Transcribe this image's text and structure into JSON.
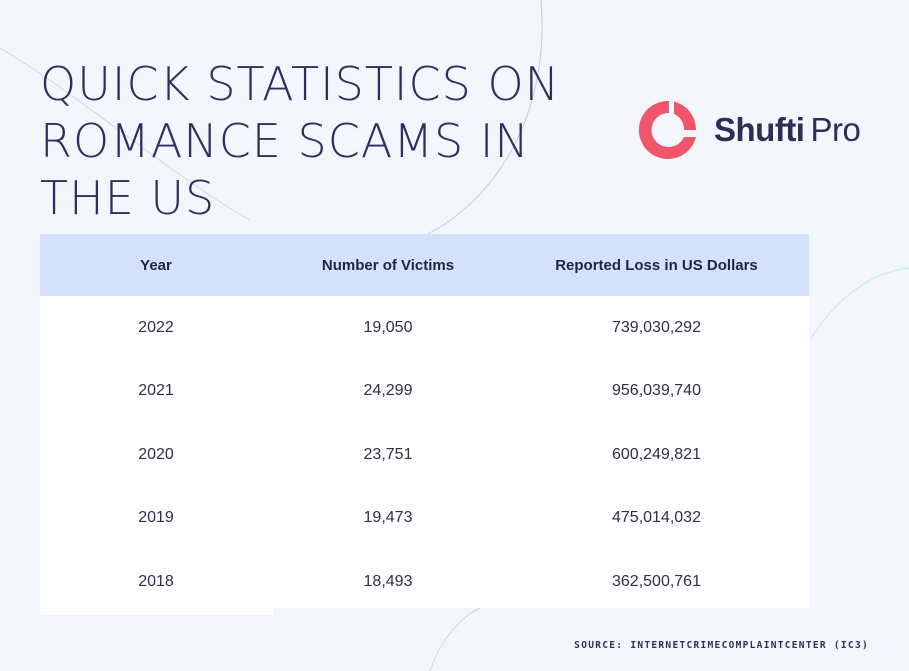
{
  "title": "QUICK STATISTICS ON ROMANCE SCAMS IN THE US",
  "logo": {
    "name_bold": "Shufti",
    "name_light": "Pro",
    "accent_color": "#f0566a"
  },
  "table": {
    "headers": [
      "Year",
      "Number of Victims",
      "Reported Loss in US Dollars"
    ],
    "rows": [
      [
        "2022",
        "19,050",
        "739,030,292"
      ],
      [
        "2021",
        "24,299",
        "956,039,740"
      ],
      [
        "2020",
        "23,751",
        "600,249,821"
      ],
      [
        "2019",
        "19,473",
        "475,014,032"
      ],
      [
        "2018",
        "18,493",
        "362,500,761"
      ]
    ],
    "header_bg": "#d4e1fa"
  },
  "source": "SOURCE: INTERNETCRIMECOMPLAINTCENTER (IC3)"
}
